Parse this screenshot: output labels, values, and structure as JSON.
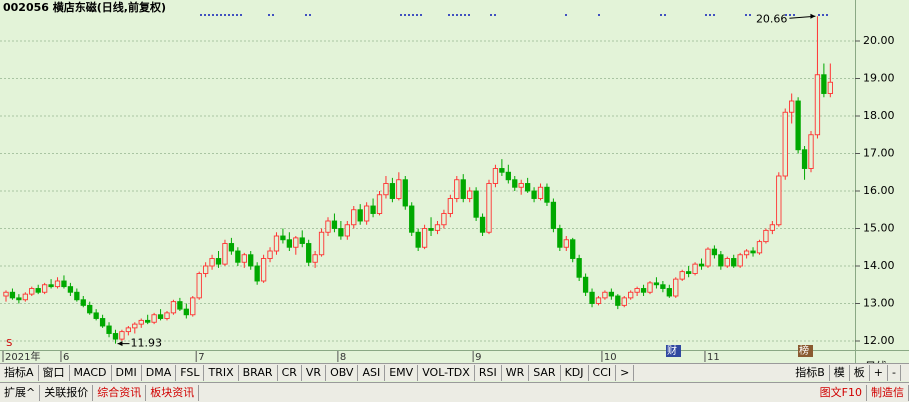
{
  "title": "002056 横店东磁(日线,前复权)",
  "period": "日线",
  "event_icons": [
    "S",
    "财",
    "榜"
  ],
  "toolbar": {
    "left": [
      "指标A",
      "窗口",
      "MACD",
      "DMI",
      "DMA",
      "FSL",
      "TRIX",
      "BRAR",
      "CR",
      "VR",
      "OBV",
      "ASI",
      "EMV",
      "VOL-TDX",
      "RSI",
      "WR",
      "SAR",
      "KDJ",
      "CCI",
      ">"
    ],
    "right": [
      "指标B",
      "模",
      "板",
      "+",
      "-"
    ]
  },
  "tabs": {
    "left": [
      "扩展^",
      "关联报价",
      "综合资讯",
      "板块资讯"
    ],
    "right": [
      "图文F10",
      "制造信"
    ]
  },
  "chart_data": {
    "type": "candlestick",
    "up_color": "#ff3232",
    "down_color": "#00a800",
    "grid": true,
    "ylim": [
      11.76,
      20.72
    ],
    "yticks": [
      {
        "value": 12,
        "label": "12.00"
      },
      {
        "value": 13,
        "label": "13.00"
      },
      {
        "value": 14,
        "label": "14.00"
      },
      {
        "value": 15,
        "label": "15.00"
      },
      {
        "value": 16,
        "label": "16.00"
      },
      {
        "value": 17,
        "label": "17.00"
      },
      {
        "value": 18,
        "label": "18.00"
      },
      {
        "value": 19,
        "label": "19.00"
      },
      {
        "value": 20,
        "label": "20.00"
      }
    ],
    "categories": [
      "2021年",
      null,
      null,
      null,
      null,
      null,
      null,
      null,
      null,
      "6",
      null,
      null,
      null,
      null,
      null,
      null,
      null,
      null,
      null,
      null,
      null,
      null,
      null,
      null,
      null,
      null,
      null,
      null,
      null,
      null,
      "7",
      null,
      null,
      null,
      null,
      null,
      null,
      null,
      null,
      null,
      null,
      null,
      null,
      null,
      null,
      null,
      null,
      null,
      null,
      null,
      null,
      null,
      "8",
      null,
      null,
      null,
      null,
      null,
      null,
      null,
      null,
      null,
      null,
      null,
      null,
      null,
      null,
      null,
      null,
      null,
      null,
      null,
      null,
      "9",
      null,
      null,
      null,
      null,
      null,
      null,
      null,
      null,
      null,
      null,
      null,
      null,
      null,
      null,
      null,
      null,
      null,
      null,
      null,
      "10",
      null,
      null,
      null,
      null,
      null,
      null,
      null,
      null,
      null,
      null,
      null,
      null,
      null,
      null,
      null,
      "11",
      null,
      null,
      null,
      null,
      null,
      null,
      null,
      null,
      null,
      null,
      null,
      null,
      null,
      null,
      null,
      null,
      null,
      null,
      null
    ],
    "ohlc": [
      [
        13.2,
        13.35,
        13.05,
        13.3
      ],
      [
        13.3,
        13.4,
        13.1,
        13.15
      ],
      [
        13.15,
        13.25,
        13.0,
        13.1
      ],
      [
        13.1,
        13.3,
        13.05,
        13.25
      ],
      [
        13.25,
        13.45,
        13.2,
        13.4
      ],
      [
        13.4,
        13.5,
        13.25,
        13.3
      ],
      [
        13.3,
        13.55,
        13.25,
        13.5
      ],
      [
        13.5,
        13.65,
        13.4,
        13.45
      ],
      [
        13.45,
        13.7,
        13.4,
        13.6
      ],
      [
        13.6,
        13.75,
        13.4,
        13.45
      ],
      [
        13.45,
        13.55,
        13.2,
        13.3
      ],
      [
        13.3,
        13.4,
        13.05,
        13.1
      ],
      [
        13.1,
        13.2,
        12.9,
        12.95
      ],
      [
        12.95,
        13.05,
        12.7,
        12.75
      ],
      [
        12.75,
        12.85,
        12.55,
        12.6
      ],
      [
        12.6,
        12.7,
        12.35,
        12.4
      ],
      [
        12.4,
        12.5,
        12.1,
        12.2
      ],
      [
        12.2,
        12.3,
        11.93,
        12.05
      ],
      [
        12.05,
        12.3,
        12.0,
        12.25
      ],
      [
        12.25,
        12.4,
        12.15,
        12.35
      ],
      [
        12.35,
        12.5,
        12.2,
        12.45
      ],
      [
        12.45,
        12.6,
        12.35,
        12.55
      ],
      [
        12.55,
        12.7,
        12.45,
        12.5
      ],
      [
        12.5,
        12.75,
        12.45,
        12.7
      ],
      [
        12.7,
        12.85,
        12.55,
        12.6
      ],
      [
        12.6,
        12.8,
        12.55,
        12.75
      ],
      [
        12.75,
        13.1,
        12.7,
        13.05
      ],
      [
        13.05,
        13.15,
        12.8,
        12.85
      ],
      [
        12.85,
        13.0,
        12.6,
        12.7
      ],
      [
        12.7,
        13.2,
        12.65,
        13.15
      ],
      [
        13.15,
        13.85,
        13.1,
        13.8
      ],
      [
        13.8,
        14.1,
        13.7,
        14.0
      ],
      [
        14.0,
        14.3,
        13.9,
        14.2
      ],
      [
        14.2,
        14.4,
        13.95,
        14.05
      ],
      [
        14.05,
        14.7,
        14.0,
        14.6
      ],
      [
        14.6,
        14.75,
        14.3,
        14.4
      ],
      [
        14.4,
        14.5,
        14.0,
        14.1
      ],
      [
        14.1,
        14.35,
        13.95,
        14.3
      ],
      [
        14.3,
        14.4,
        13.9,
        14.0
      ],
      [
        14.0,
        14.1,
        13.5,
        13.6
      ],
      [
        13.6,
        14.3,
        13.55,
        14.2
      ],
      [
        14.2,
        14.5,
        14.1,
        14.4
      ],
      [
        14.4,
        14.9,
        14.3,
        14.8
      ],
      [
        14.8,
        15.0,
        14.6,
        14.7
      ],
      [
        14.7,
        14.9,
        14.4,
        14.5
      ],
      [
        14.5,
        14.8,
        14.3,
        14.75
      ],
      [
        14.75,
        14.95,
        14.5,
        14.6
      ],
      [
        14.6,
        14.7,
        14.0,
        14.1
      ],
      [
        14.1,
        14.4,
        13.95,
        14.3
      ],
      [
        14.3,
        15.0,
        14.25,
        14.9
      ],
      [
        14.9,
        15.3,
        14.8,
        15.2
      ],
      [
        15.2,
        15.4,
        14.9,
        15.0
      ],
      [
        15.0,
        15.2,
        14.7,
        14.8
      ],
      [
        14.8,
        15.2,
        14.7,
        15.1
      ],
      [
        15.1,
        15.6,
        15.0,
        15.5
      ],
      [
        15.5,
        15.65,
        15.1,
        15.2
      ],
      [
        15.2,
        15.7,
        15.1,
        15.6
      ],
      [
        15.6,
        15.8,
        15.3,
        15.4
      ],
      [
        15.4,
        16.0,
        15.35,
        15.9
      ],
      [
        15.9,
        16.4,
        15.8,
        16.2
      ],
      [
        16.2,
        16.35,
        15.7,
        15.8
      ],
      [
        15.8,
        16.5,
        15.75,
        16.3
      ],
      [
        16.3,
        16.4,
        15.5,
        15.6
      ],
      [
        15.6,
        15.7,
        14.8,
        14.9
      ],
      [
        14.9,
        15.0,
        14.4,
        14.5
      ],
      [
        14.5,
        15.1,
        14.45,
        15.0
      ],
      [
        15.0,
        15.3,
        14.8,
        14.95
      ],
      [
        14.95,
        15.2,
        14.85,
        15.1
      ],
      [
        15.1,
        15.5,
        15.0,
        15.4
      ],
      [
        15.4,
        15.9,
        15.3,
        15.8
      ],
      [
        15.8,
        16.4,
        15.7,
        16.3
      ],
      [
        16.3,
        16.45,
        15.7,
        15.8
      ],
      [
        15.8,
        16.1,
        15.7,
        16.0
      ],
      [
        16.0,
        16.1,
        15.2,
        15.3
      ],
      [
        15.3,
        15.4,
        14.8,
        14.9
      ],
      [
        14.9,
        16.3,
        14.85,
        16.2
      ],
      [
        16.2,
        16.7,
        16.1,
        16.6
      ],
      [
        16.6,
        16.85,
        16.4,
        16.5
      ],
      [
        16.5,
        16.7,
        16.2,
        16.3
      ],
      [
        16.3,
        16.4,
        16.0,
        16.1
      ],
      [
        16.1,
        16.3,
        15.9,
        16.2
      ],
      [
        16.2,
        16.35,
        15.95,
        16.0
      ],
      [
        16.0,
        16.1,
        15.7,
        15.8
      ],
      [
        15.8,
        16.2,
        15.75,
        16.1
      ],
      [
        16.1,
        16.2,
        15.6,
        15.7
      ],
      [
        15.7,
        15.8,
        14.9,
        15.0
      ],
      [
        15.0,
        15.1,
        14.4,
        14.5
      ],
      [
        14.5,
        14.8,
        14.4,
        14.7
      ],
      [
        14.7,
        14.75,
        14.1,
        14.2
      ],
      [
        14.2,
        14.3,
        13.6,
        13.7
      ],
      [
        13.7,
        13.8,
        13.2,
        13.3
      ],
      [
        13.3,
        13.4,
        12.9,
        13.0
      ],
      [
        13.0,
        13.2,
        12.95,
        13.15
      ],
      [
        13.15,
        13.35,
        13.1,
        13.3
      ],
      [
        13.3,
        13.4,
        13.1,
        13.2
      ],
      [
        13.2,
        13.25,
        12.85,
        12.95
      ],
      [
        12.95,
        13.2,
        12.9,
        13.15
      ],
      [
        13.15,
        13.35,
        13.1,
        13.3
      ],
      [
        13.3,
        13.45,
        13.2,
        13.4
      ],
      [
        13.4,
        13.5,
        13.2,
        13.3
      ],
      [
        13.3,
        13.6,
        13.25,
        13.55
      ],
      [
        13.55,
        13.7,
        13.4,
        13.5
      ],
      [
        13.5,
        13.6,
        13.3,
        13.4
      ],
      [
        13.4,
        13.5,
        13.15,
        13.2
      ],
      [
        13.2,
        13.7,
        13.15,
        13.65
      ],
      [
        13.65,
        13.9,
        13.6,
        13.85
      ],
      [
        13.85,
        14.0,
        13.7,
        13.8
      ],
      [
        13.8,
        14.1,
        13.75,
        14.05
      ],
      [
        14.05,
        14.2,
        13.9,
        14.0
      ],
      [
        14.0,
        14.5,
        13.95,
        14.45
      ],
      [
        14.45,
        14.55,
        14.2,
        14.3
      ],
      [
        14.3,
        14.4,
        13.9,
        14.0
      ],
      [
        14.0,
        14.25,
        13.95,
        14.2
      ],
      [
        14.2,
        14.3,
        13.95,
        14.0
      ],
      [
        14.0,
        14.35,
        13.95,
        14.3
      ],
      [
        14.3,
        14.45,
        14.2,
        14.4
      ],
      [
        14.4,
        14.5,
        14.25,
        14.35
      ],
      [
        14.35,
        14.7,
        14.3,
        14.65
      ],
      [
        14.65,
        15.0,
        14.6,
        14.95
      ],
      [
        14.95,
        15.2,
        14.85,
        15.1
      ],
      [
        15.1,
        16.5,
        15.05,
        16.4
      ],
      [
        16.4,
        18.2,
        16.3,
        18.1
      ],
      [
        18.1,
        18.6,
        17.8,
        18.4
      ],
      [
        18.4,
        18.5,
        17.0,
        17.1
      ],
      [
        17.1,
        17.2,
        16.3,
        16.6
      ],
      [
        16.6,
        17.6,
        16.5,
        17.5
      ],
      [
        17.5,
        20.66,
        17.4,
        19.1
      ],
      [
        19.1,
        19.4,
        18.5,
        18.6
      ],
      [
        18.6,
        19.4,
        18.5,
        18.9
      ]
    ]
  }
}
